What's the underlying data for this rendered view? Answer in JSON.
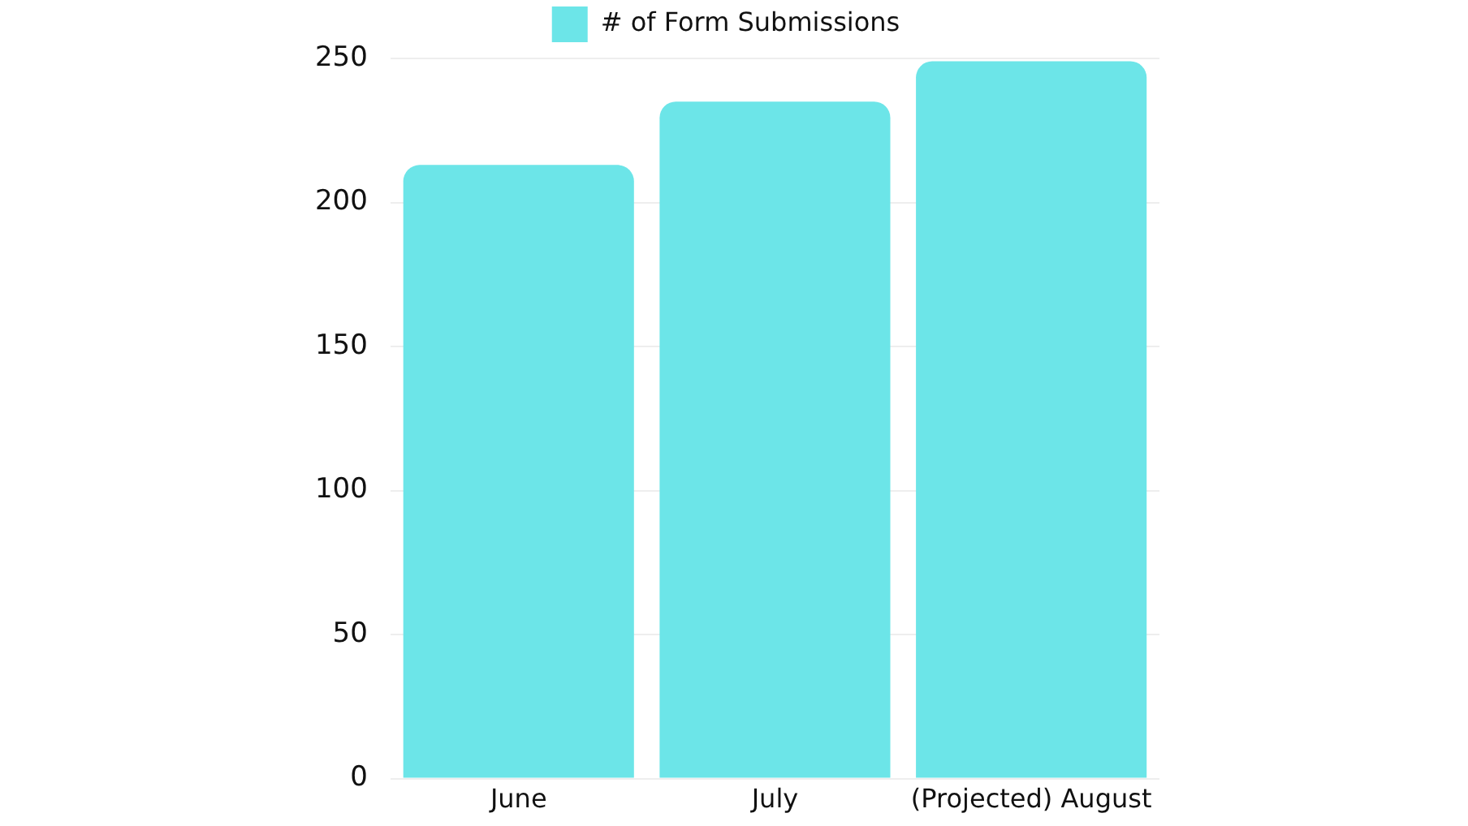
{
  "chart_data": {
    "type": "bar",
    "categories": [
      "June",
      "July",
      "(Projected) August"
    ],
    "series": [
      {
        "name": "# of Form Submissions",
        "color": "#6ce5e8",
        "values": [
          213,
          235,
          249
        ]
      }
    ],
    "ylim": [
      0,
      250
    ],
    "yticks": [
      0,
      50,
      100,
      150,
      200,
      250
    ],
    "grid": "y",
    "legend": "top"
  }
}
